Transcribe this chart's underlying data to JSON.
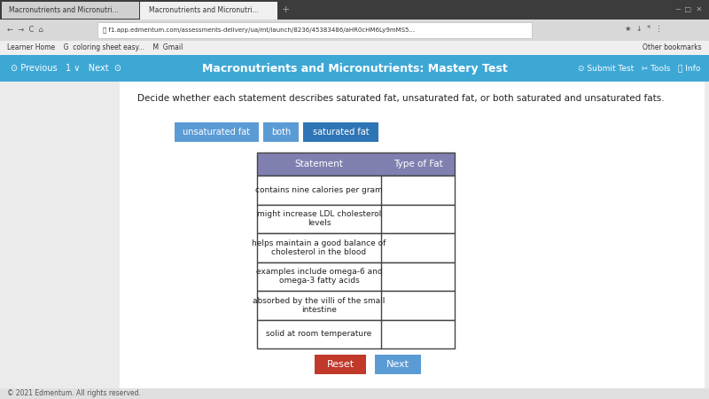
{
  "title": "Macronutrients and Micronutrients: Mastery Test",
  "instruction": "Decide whether each statement describes saturated fat, unsaturated fat, or both saturated and unsaturated fats.",
  "btn1_label": "unsaturated fat",
  "btn2_label": "both",
  "btn3_label": "saturated fat",
  "btn1_color": "#5b9bd5",
  "btn2_color": "#5b9bd5",
  "btn3_color": "#2e75b6",
  "table_headers": [
    "Statement",
    "Type of Fat"
  ],
  "table_rows": [
    "contains nine calories per gram",
    "might increase LDL cholesterol\nlevels",
    "helps maintain a good balance of\ncholesterol in the blood",
    "examples include omega-6 and\nomega-3 fatty acids",
    "absorbed by the villi of the small\nintestine",
    "solid at room temperature"
  ],
  "header_bg": "#8080b0",
  "header_text": "#ffffff",
  "row_bg": "#ffffff",
  "row_border": "#444444",
  "nav_bar_color": "#3ea8d5",
  "bg_color": "#e8e8e8",
  "content_bg": "#f5f5f5",
  "white_panel_bg": "#ffffff",
  "reset_button_color": "#c0392b",
  "next_button_color": "#5b9bd5",
  "footer_text": "© 2021 Edmentum. All rights reserved.",
  "browser_chrome_color": "#3c3c3c",
  "tab_inactive_bg": "#d0d0d0",
  "tab_active_bg": "#f0f0f0",
  "url_bar_bg": "#d8d8d8",
  "url_field_bg": "#ffffff",
  "bookmarks_bg": "#efefef",
  "tab_text": "Macronutrients and Micronutri...",
  "url_text": "f1.app.edmentum.com/assessments-delivery/ua/mt/launch/8236/45383486/aHR0cHM6Ly9mMS5...",
  "bm_text": "Learner Home    G  coloring sheet easy...    M  Gmail",
  "bm_right_text": "Other bookmarks",
  "nav_left_text": "Previous    1 ∨    Next  ◎",
  "nav_right_text": "◎ Submit Test    ✂ Tools    ⓘ Info"
}
